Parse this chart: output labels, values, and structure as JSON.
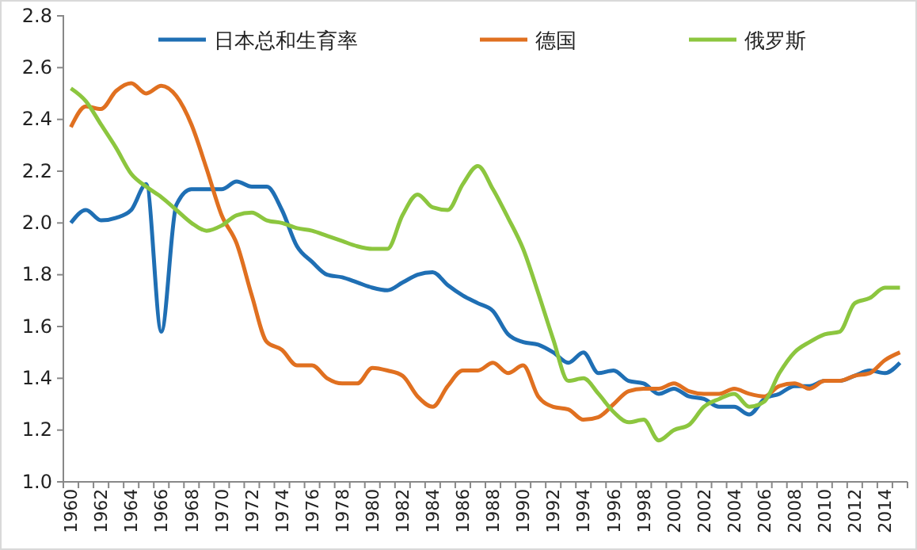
{
  "chart_data": {
    "type": "line",
    "categories": [
      "1960",
      null,
      "1962",
      null,
      "1964",
      null,
      "1966",
      null,
      "1968",
      null,
      "1970",
      null,
      "1972",
      null,
      "1974",
      null,
      "1976",
      null,
      "1978",
      null,
      "1980",
      null,
      "1982",
      null,
      "1984",
      null,
      "1986",
      null,
      "1988",
      null,
      "1990",
      null,
      "1992",
      null,
      "1994",
      null,
      "1996",
      null,
      "1998",
      null,
      "2000",
      null,
      "2002",
      null,
      "2004",
      null,
      "2006",
      null,
      "2008",
      null,
      "2010",
      null,
      "2012",
      null,
      "2014",
      null
    ],
    "series": [
      {
        "name": "日本总和生育率",
        "color": "#1f6fb4",
        "values": [
          2.0,
          2.05,
          2.01,
          2.02,
          2.05,
          2.15,
          1.58,
          2.07,
          2.13,
          2.13,
          2.13,
          2.16,
          2.14,
          2.14,
          2.05,
          1.91,
          1.85,
          1.8,
          1.79,
          1.77,
          1.75,
          1.74,
          1.77,
          1.8,
          1.81,
          1.76,
          1.72,
          1.69,
          1.66,
          1.57,
          1.54,
          1.53,
          1.5,
          1.46,
          1.5,
          1.42,
          1.43,
          1.39,
          1.38,
          1.34,
          1.36,
          1.33,
          1.32,
          1.29,
          1.29,
          1.26,
          1.32,
          1.34,
          1.37,
          1.37,
          1.39,
          1.39,
          1.41,
          1.43,
          1.42,
          1.46
        ]
      },
      {
        "name": "德国",
        "color": "#e07020",
        "values": [
          2.37,
          2.45,
          2.44,
          2.51,
          2.54,
          2.5,
          2.53,
          2.49,
          2.38,
          2.21,
          2.03,
          1.92,
          1.72,
          1.54,
          1.51,
          1.45,
          1.45,
          1.4,
          1.38,
          1.38,
          1.44,
          1.43,
          1.41,
          1.33,
          1.29,
          1.37,
          1.43,
          1.43,
          1.46,
          1.42,
          1.45,
          1.33,
          1.29,
          1.28,
          1.24,
          1.25,
          1.3,
          1.35,
          1.36,
          1.36,
          1.38,
          1.35,
          1.34,
          1.34,
          1.36,
          1.34,
          1.33,
          1.37,
          1.38,
          1.36,
          1.39,
          1.39,
          1.41,
          1.42,
          1.47,
          1.5
        ]
      },
      {
        "name": "俄罗斯",
        "color": "#8cc63f",
        "values": [
          2.52,
          2.47,
          2.38,
          2.29,
          2.19,
          2.14,
          2.1,
          2.05,
          2.0,
          1.97,
          1.99,
          2.03,
          2.04,
          2.01,
          2.0,
          1.98,
          1.97,
          1.95,
          1.93,
          1.91,
          1.9,
          1.9,
          2.03,
          2.11,
          2.06,
          2.05,
          2.15,
          2.22,
          2.13,
          2.02,
          1.9,
          1.73,
          1.55,
          1.39,
          1.4,
          1.34,
          1.27,
          1.23,
          1.24,
          1.16,
          1.2,
          1.22,
          1.29,
          1.32,
          1.34,
          1.29,
          1.31,
          1.42,
          1.5,
          1.54,
          1.57,
          1.58,
          1.69,
          1.71,
          1.75,
          1.75
        ]
      }
    ],
    "ylim": [
      1.0,
      2.8
    ],
    "yticks": [
      {
        "value": 1.0,
        "label": "1.0"
      },
      {
        "value": 1.2,
        "label": "1.2"
      },
      {
        "value": 1.4,
        "label": "1.4"
      },
      {
        "value": 1.6,
        "label": "1.6"
      },
      {
        "value": 1.8,
        "label": "1.8"
      },
      {
        "value": 2.0,
        "label": "2.0"
      },
      {
        "value": 2.2,
        "label": "2.2"
      },
      {
        "value": 2.4,
        "label": "2.4"
      },
      {
        "value": 2.6,
        "label": "2.6"
      },
      {
        "value": 2.8,
        "label": "2.8"
      }
    ],
    "legend": "top",
    "grid": false,
    "marker": "none",
    "line_style": "solid"
  }
}
